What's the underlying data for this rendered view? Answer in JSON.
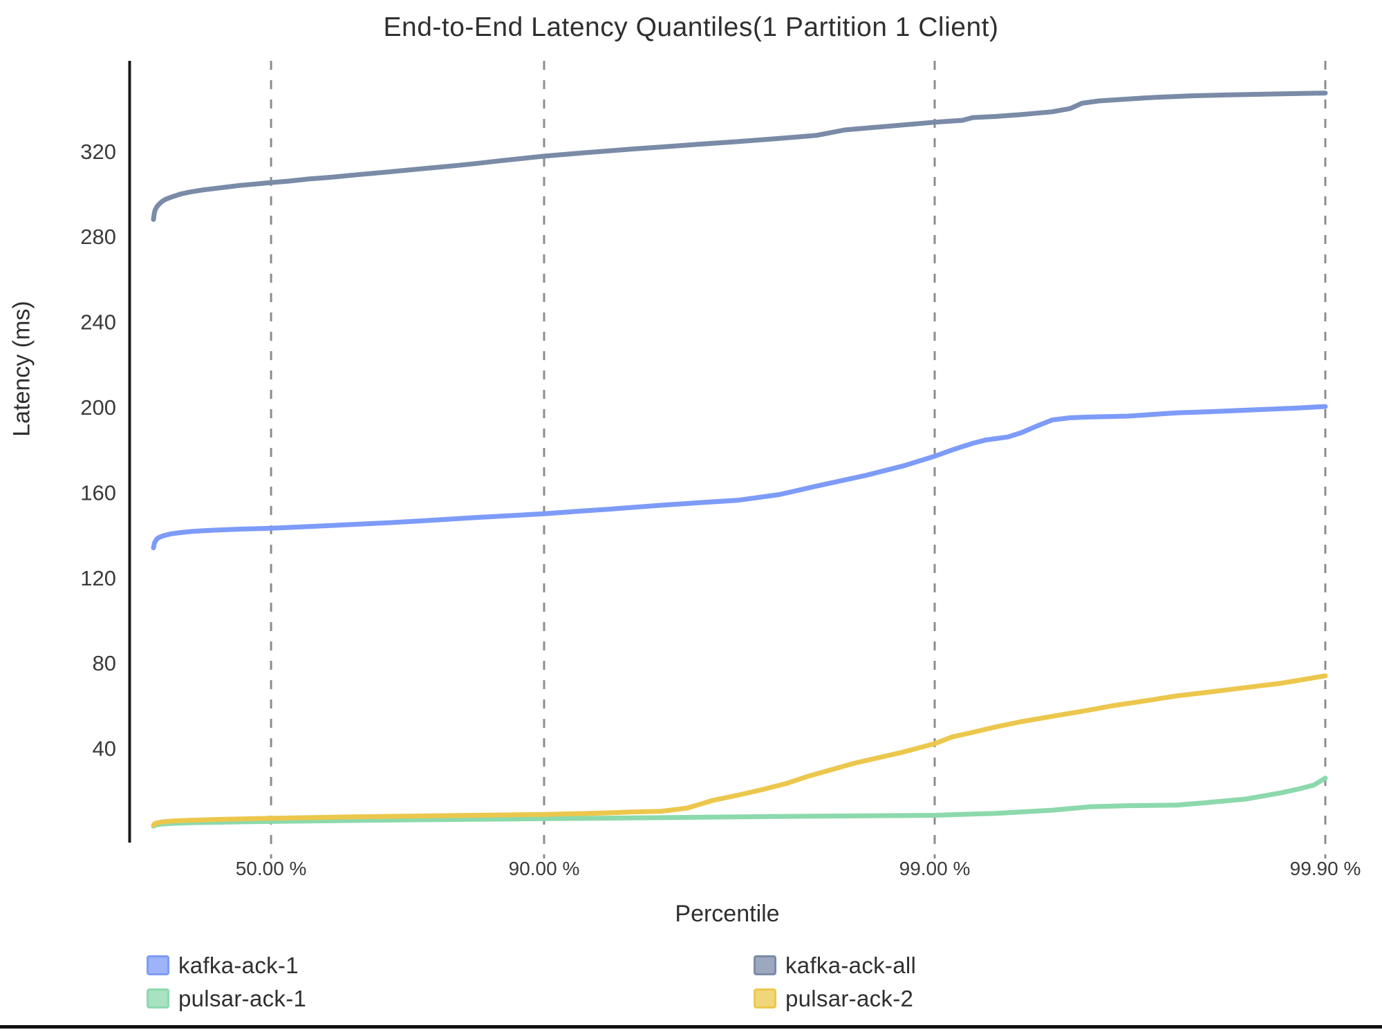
{
  "title": "End-to-End Latency Quantiles(1 Partition 1 Client)",
  "colors": {
    "kafka_ack_1": "#7D9BF8",
    "kafka_ack_all": "#7A8BA7",
    "pulsar_ack_1": "#8CD9AC",
    "pulsar_ack_2": "#ECC74D",
    "axis_line": "#1a1a1a",
    "gridline": "#8c8c8c",
    "tick_text": "#3a3a3a"
  },
  "legend": {
    "items": [
      {
        "label": "kafka-ack-1",
        "series": "kafka_ack_1",
        "column": 0
      },
      {
        "label": "pulsar-ack-1",
        "series": "pulsar_ack_1",
        "column": 0
      },
      {
        "label": "kafka-ack-all",
        "series": "kafka_ack_all",
        "column": 1
      },
      {
        "label": "pulsar-ack-2",
        "series": "pulsar_ack_2",
        "column": 1
      }
    ]
  },
  "chart_data": {
    "type": "line",
    "title": "End-to-End Latency Quantiles(1 Partition 1 Client)",
    "xlabel": "Percentile",
    "ylabel": "Latency (ms)",
    "x_scale": "logarithmic percentile axis, position proportional to log10(1/(1-q)), q from 0 to 0.999",
    "grid": "vertical dashed gridlines at each x tick",
    "legend_position": "bottom, two columns",
    "x_ticks": [
      {
        "label": "50.00 %",
        "p": 50
      },
      {
        "label": "90.00 %",
        "p": 90
      },
      {
        "label": "99.00 %",
        "p": 99
      },
      {
        "label": "99.90 %",
        "p": 99.9
      }
    ],
    "y_ticks": [
      40,
      80,
      120,
      160,
      200,
      240,
      280,
      320
    ],
    "ylim_ms": [
      -4,
      363
    ],
    "series": [
      {
        "name": "kafka-ack-all",
        "color_key": "kafka_ack_all",
        "points_percentile_ms": [
          [
            0,
            288
          ],
          [
            0.5,
            291
          ],
          [
            1,
            292.5
          ],
          [
            2,
            294
          ],
          [
            3,
            295
          ],
          [
            5,
            296.5
          ],
          [
            7,
            297.5
          ],
          [
            10,
            298.5
          ],
          [
            15,
            300
          ],
          [
            20,
            301
          ],
          [
            25,
            301.8
          ],
          [
            30,
            302.5
          ],
          [
            35,
            303.2
          ],
          [
            40,
            304
          ],
          [
            45,
            304.6
          ],
          [
            50,
            305.3
          ],
          [
            55,
            306
          ],
          [
            60,
            307
          ],
          [
            65,
            307.8
          ],
          [
            70,
            309
          ],
          [
            75,
            310.3
          ],
          [
            80,
            312
          ],
          [
            83,
            313.2
          ],
          [
            85,
            314.2
          ],
          [
            87,
            315.5
          ],
          [
            90,
            317.7
          ],
          [
            92,
            319.2
          ],
          [
            93,
            320
          ],
          [
            94,
            321
          ],
          [
            95,
            322
          ],
          [
            96,
            323.3
          ],
          [
            96.8,
            324.5
          ],
          [
            97.5,
            326
          ],
          [
            98,
            327.5
          ],
          [
            98.3,
            330
          ],
          [
            98.6,
            331.3
          ],
          [
            99,
            333.6
          ],
          [
            99.1,
            334.2
          ],
          [
            99.15,
            334.5
          ],
          [
            99.2,
            335.8
          ],
          [
            99.3,
            336.3
          ],
          [
            99.4,
            337.2
          ],
          [
            99.5,
            338.5
          ],
          [
            99.55,
            340
          ],
          [
            99.58,
            342.5
          ],
          [
            99.62,
            343.6
          ],
          [
            99.68,
            344.5
          ],
          [
            99.73,
            345.3
          ],
          [
            99.78,
            346
          ],
          [
            99.82,
            346.4
          ],
          [
            99.86,
            346.8
          ],
          [
            99.9,
            347.3
          ]
        ]
      },
      {
        "name": "kafka-ack-1",
        "color_key": "kafka_ack_1",
        "points_percentile_ms": [
          [
            0,
            134
          ],
          [
            0.5,
            136
          ],
          [
            1,
            137
          ],
          [
            2,
            138.2
          ],
          [
            3,
            138.8
          ],
          [
            5,
            139.5
          ],
          [
            7,
            140
          ],
          [
            10,
            140.6
          ],
          [
            15,
            141.2
          ],
          [
            20,
            141.7
          ],
          [
            25,
            142
          ],
          [
            30,
            142.3
          ],
          [
            40,
            142.8
          ],
          [
            50,
            143.2
          ],
          [
            60,
            144
          ],
          [
            65,
            144.5
          ],
          [
            70,
            145.1
          ],
          [
            75,
            145.8
          ],
          [
            80,
            146.8
          ],
          [
            85,
            148.2
          ],
          [
            88,
            149.2
          ],
          [
            90,
            150
          ],
          [
            92,
            151.3
          ],
          [
            93,
            152
          ],
          [
            94,
            152.9
          ],
          [
            95,
            154
          ],
          [
            96,
            155.2
          ],
          [
            96.8,
            156.3
          ],
          [
            97.5,
            159
          ],
          [
            98,
            163
          ],
          [
            98.5,
            168
          ],
          [
            98.8,
            172.5
          ],
          [
            99,
            177
          ],
          [
            99.1,
            180
          ],
          [
            99.2,
            183
          ],
          [
            99.26,
            184.6
          ],
          [
            99.35,
            186
          ],
          [
            99.4,
            188
          ],
          [
            99.45,
            191
          ],
          [
            99.5,
            194
          ],
          [
            99.55,
            195
          ],
          [
            99.6,
            195.4
          ],
          [
            99.68,
            195.8
          ],
          [
            99.72,
            196.5
          ],
          [
            99.76,
            197.3
          ],
          [
            99.8,
            197.8
          ],
          [
            99.85,
            198.8
          ],
          [
            99.88,
            199.5
          ],
          [
            99.9,
            200.3
          ]
        ]
      },
      {
        "name": "pulsar-ack-1",
        "color_key": "pulsar_ack_1",
        "points_percentile_ms": [
          [
            0,
            3.5
          ],
          [
            1,
            4
          ],
          [
            3,
            4.3
          ],
          [
            5,
            4.5
          ],
          [
            10,
            4.8
          ],
          [
            20,
            5.1
          ],
          [
            30,
            5.3
          ],
          [
            40,
            5.5
          ],
          [
            50,
            5.7
          ],
          [
            60,
            5.9
          ],
          [
            70,
            6.2
          ],
          [
            80,
            6.5
          ],
          [
            90,
            7
          ],
          [
            95,
            7.5
          ],
          [
            97,
            7.9
          ],
          [
            98,
            8.2
          ],
          [
            99,
            8.6
          ],
          [
            99.3,
            9.5
          ],
          [
            99.5,
            11
          ],
          [
            99.6,
            12.6
          ],
          [
            99.68,
            13.1
          ],
          [
            99.76,
            13.4
          ],
          [
            99.8,
            14.6
          ],
          [
            99.84,
            16.2
          ],
          [
            99.87,
            19.1
          ],
          [
            99.884,
            21.1
          ],
          [
            99.893,
            22.8
          ],
          [
            99.9,
            26
          ]
        ]
      },
      {
        "name": "pulsar-ack-2",
        "color_key": "pulsar_ack_2",
        "points_percentile_ms": [
          [
            0,
            4
          ],
          [
            1,
            4.8
          ],
          [
            3,
            5.2
          ],
          [
            5,
            5.5
          ],
          [
            10,
            5.9
          ],
          [
            20,
            6.3
          ],
          [
            30,
            6.6
          ],
          [
            40,
            6.9
          ],
          [
            50,
            7.2
          ],
          [
            60,
            7.5
          ],
          [
            70,
            7.9
          ],
          [
            80,
            8.3
          ],
          [
            85,
            8.6
          ],
          [
            90,
            9
          ],
          [
            92,
            9.4
          ],
          [
            93,
            9.7
          ],
          [
            94,
            10.1
          ],
          [
            95,
            10.5
          ],
          [
            95.7,
            12
          ],
          [
            96.3,
            15.6
          ],
          [
            96.8,
            18
          ],
          [
            97.2,
            20.4
          ],
          [
            97.6,
            23.5
          ],
          [
            97.9,
            27
          ],
          [
            98.4,
            33.1
          ],
          [
            98.8,
            38.3
          ],
          [
            99,
            42.2
          ],
          [
            99.1,
            45.4
          ],
          [
            99.2,
            47.5
          ],
          [
            99.3,
            50
          ],
          [
            99.4,
            52.5
          ],
          [
            99.5,
            55
          ],
          [
            99.6,
            58
          ],
          [
            99.65,
            60
          ],
          [
            99.7,
            61.8
          ],
          [
            99.76,
            64.6
          ],
          [
            99.8,
            66.3
          ],
          [
            99.84,
            68.5
          ],
          [
            99.87,
            70.5
          ],
          [
            99.9,
            74
          ]
        ]
      }
    ]
  }
}
